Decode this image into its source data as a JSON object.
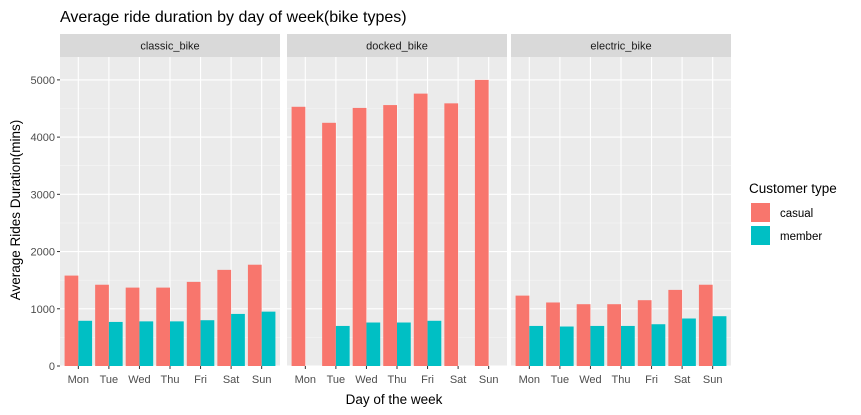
{
  "chart_data": {
    "type": "bar",
    "title": "Average ride duration by day of week(bike types)",
    "xlabel": "Day of the week",
    "ylabel": "Average Rides Duration(mins)",
    "ylim": [
      0,
      5400
    ],
    "yticks": [
      "0",
      "1000",
      "2000",
      "3000",
      "4000",
      "5000"
    ],
    "ytick_values": [
      0,
      1000,
      2000,
      3000,
      4000,
      5000
    ],
    "categories": [
      "Mon",
      "Tue",
      "Wed",
      "Thu",
      "Fri",
      "Sat",
      "Sun"
    ],
    "legend": {
      "title": "Customer type",
      "position": "right",
      "entries": [
        {
          "name": "casual",
          "color": "#F8766D"
        },
        {
          "name": "member",
          "color": "#00BFC4"
        }
      ]
    },
    "facets": [
      {
        "name": "classic_bike",
        "series": [
          {
            "name": "casual",
            "values": [
              1580,
              1420,
              1370,
              1370,
              1470,
              1680,
              1770
            ]
          },
          {
            "name": "member",
            "values": [
              790,
              770,
              780,
              780,
              800,
              910,
              950
            ]
          }
        ]
      },
      {
        "name": "docked_bike",
        "series": [
          {
            "name": "casual",
            "values": [
              4530,
              4250,
              4510,
              4560,
              4760,
              4590,
              5000
            ]
          },
          {
            "name": "member",
            "values": [
              null,
              700,
              760,
              760,
              790,
              null,
              null
            ]
          }
        ]
      },
      {
        "name": "electric_bike",
        "series": [
          {
            "name": "casual",
            "values": [
              1230,
              1110,
              1080,
              1080,
              1150,
              1330,
              1420
            ]
          },
          {
            "name": "member",
            "values": [
              700,
              690,
              700,
              700,
              730,
              830,
              870
            ]
          }
        ]
      }
    ],
    "panel_background": "#EBEBEB",
    "strip_background": "#D9D9D9",
    "grid": true
  }
}
